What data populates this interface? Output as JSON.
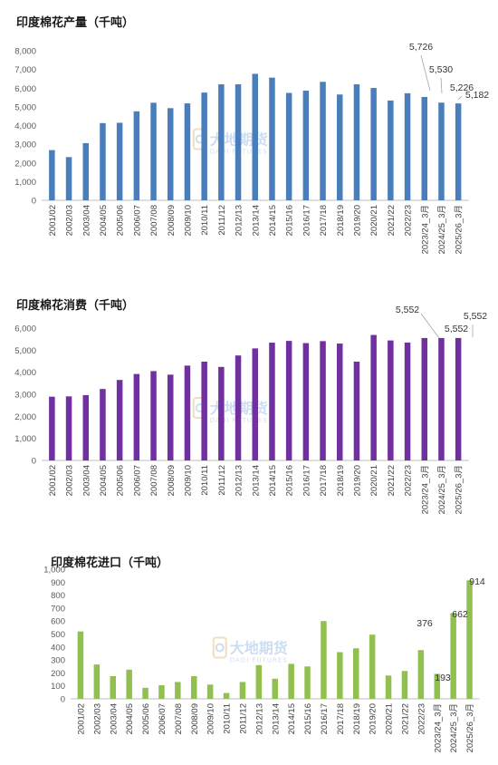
{
  "colors": {
    "production": "#4a7ebb",
    "consumption": "#7030a0",
    "imports": "#92c050",
    "axis": "#bfbfbf"
  },
  "watermark": {
    "name": "大地期货",
    "sub": "DADI FUTURES",
    "icon": "dadi-logo-icon"
  },
  "chart_data": [
    {
      "type": "bar",
      "title": "印度棉花产量（千吨）",
      "categories": [
        "2001/02",
        "2002/03",
        "2003/04",
        "2004/05",
        "2005/06",
        "2006/07",
        "2007/08",
        "2008/09",
        "2009/10",
        "2010/11",
        "2011/12",
        "2012/13",
        "2013/14",
        "2014/15",
        "2015/16",
        "2016/17",
        "2017/18",
        "2018/19",
        "2019/20",
        "2020/21",
        "2021/22",
        "2022/23",
        "2023/24_3月",
        "2024/25_3月",
        "2025/26_3月"
      ],
      "values": [
        2686,
        2312,
        3060,
        4131,
        4148,
        4760,
        5219,
        4930,
        5185,
        5763,
        6205,
        6205,
        6766,
        6562,
        5746,
        5865,
        6338,
        5661,
        6205,
        6009,
        5338,
        5726,
        5530,
        5226,
        5182
      ],
      "ylim": [
        0,
        8000
      ],
      "yticks": [
        "0",
        "1,000",
        "2,000",
        "3,000",
        "4,000",
        "5,000",
        "6,000",
        "7,000",
        "8,000"
      ],
      "labels": [
        {
          "index": 21,
          "text": "5,726"
        },
        {
          "index": 22,
          "text": "5,530"
        },
        {
          "index": 23,
          "text": "5,226"
        },
        {
          "index": 24,
          "text": "5,182"
        }
      ],
      "xlabel": "",
      "ylabel": "",
      "grid": false,
      "legend": "none"
    },
    {
      "type": "bar",
      "title": "印度棉花消费（千吨）",
      "categories": [
        "2001/02",
        "2002/03",
        "2003/04",
        "2004/05",
        "2005/06",
        "2006/07",
        "2007/08",
        "2008/09",
        "2009/10",
        "2010/11",
        "2011/12",
        "2012/13",
        "2013/14",
        "2014/15",
        "2015/16",
        "2016/17",
        "2017/18",
        "2018/19",
        "2019/20",
        "2020/21",
        "2021/22",
        "2022/23",
        "2023/24_3月",
        "2024/25_3月",
        "2025/26_3月"
      ],
      "values": [
        2890,
        2905,
        2962,
        3240,
        3650,
        3920,
        4050,
        3890,
        4300,
        4480,
        4240,
        4760,
        5080,
        5340,
        5420,
        5320,
        5410,
        5300,
        4480,
        5690,
        5440,
        5345,
        5552,
        5552,
        5552
      ],
      "ylim": [
        0,
        6000
      ],
      "yticks": [
        "0",
        "1,000",
        "2,000",
        "3,000",
        "4,000",
        "5,000",
        "6,000"
      ],
      "labels": [
        {
          "index": 22,
          "text": "5,552"
        },
        {
          "index": 23,
          "text": "5,552"
        },
        {
          "index": 24,
          "text": "5,552"
        }
      ],
      "xlabel": "",
      "ylabel": "",
      "grid": false,
      "legend": "none"
    },
    {
      "type": "bar",
      "title": "印度棉花进口（千吨）",
      "categories": [
        "2001/02",
        "2002/03",
        "2003/04",
        "2004/05",
        "2005/06",
        "2006/07",
        "2007/08",
        "2008/09",
        "2009/10",
        "2010/11",
        "2011/12",
        "2012/13",
        "2013/14",
        "2014/15",
        "2015/16",
        "2016/17",
        "2017/18",
        "2018/19",
        "2019/20",
        "2020/21",
        "2021/22",
        "2022/23",
        "2023/24_3月",
        "2024/25_3月",
        "2025/26_3月"
      ],
      "values": [
        520,
        265,
        175,
        225,
        85,
        105,
        130,
        175,
        110,
        45,
        130,
        260,
        155,
        270,
        250,
        600,
        360,
        390,
        495,
        180,
        215,
        376,
        193,
        662,
        914
      ],
      "ylim": [
        0,
        1000
      ],
      "yticks": [
        "0",
        "100",
        "200",
        "300",
        "400",
        "500",
        "600",
        "700",
        "800",
        "900",
        "1,000"
      ],
      "labels": [
        {
          "index": 21,
          "text": "376"
        },
        {
          "index": 22,
          "text": "193"
        },
        {
          "index": 23,
          "text": "662"
        },
        {
          "index": 24,
          "text": "914"
        }
      ],
      "xlabel": "",
      "ylabel": "",
      "grid": false,
      "legend": "none"
    }
  ]
}
